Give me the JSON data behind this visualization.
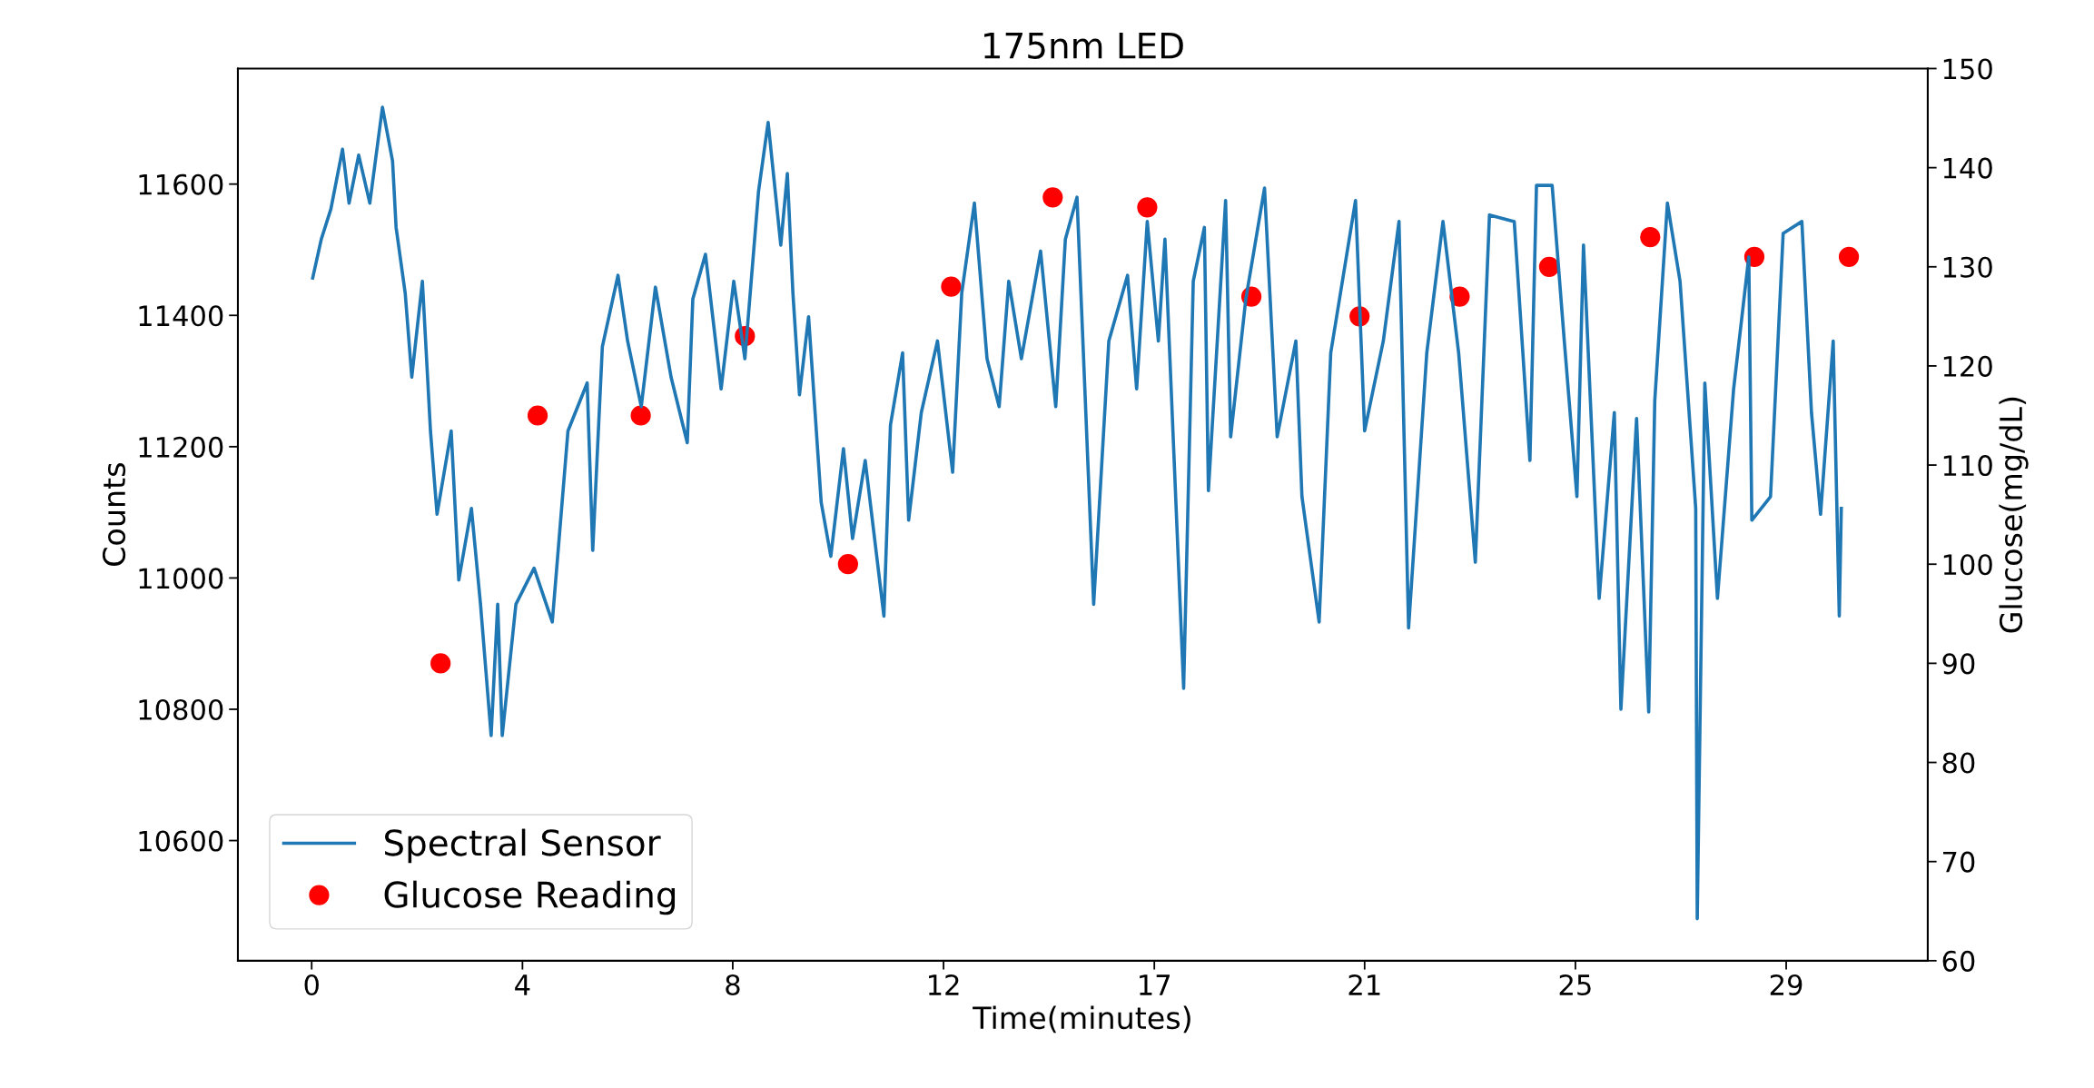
{
  "chart_data": {
    "type": "line",
    "title": "175nm LED",
    "xlabel": "Time(minutes)",
    "ylabel": "Counts",
    "y2label": "Glucose(mg/dL)",
    "xlim": [
      -1.46,
      31.97
    ],
    "xticks": [
      0,
      {
        "value": 4.17,
        "label": "4"
      },
      {
        "value": 8.33,
        "label": "8"
      },
      {
        "value": 12.5,
        "label": "12"
      },
      {
        "value": 16.67,
        "label": "17"
      },
      {
        "value": 20.83,
        "label": "21"
      },
      25,
      {
        "value": 29.17,
        "label": "29"
      }
    ],
    "ylim": [
      10417,
      11776
    ],
    "yticks": [
      10600,
      10800,
      11000,
      11200,
      11400,
      11600
    ],
    "y2lim": [
      60,
      150
    ],
    "y2ticks": [
      60,
      70,
      80,
      90,
      100,
      110,
      120,
      130,
      140,
      150
    ],
    "legend": "bottom left",
    "grid": false,
    "series": [
      {
        "name": "Spectral Sensor",
        "color": "#1f77b4",
        "line_style": "solid",
        "marker": "none",
        "x": [
          0.02,
          0.19,
          0.38,
          0.61,
          0.74,
          0.93,
          1.15,
          1.4,
          1.6,
          1.67,
          1.85,
          1.98,
          2.19,
          2.35,
          2.48,
          2.76,
          2.91,
          3.16,
          3.34,
          3.55,
          3.68,
          3.77,
          4.04,
          4.4,
          4.76,
          5.07,
          5.45,
          5.56,
          5.75,
          6.06,
          6.25,
          6.52,
          6.8,
          7.11,
          7.43,
          7.54,
          7.79,
          8.1,
          8.35,
          8.57,
          8.84,
          9.03,
          9.28,
          9.41,
          9.52,
          9.65,
          9.83,
          10.08,
          10.27,
          10.52,
          10.7,
          10.95,
          11.32,
          11.45,
          11.69,
          11.81,
          12.06,
          12.38,
          12.68,
          12.86,
          13.11,
          13.36,
          13.6,
          13.79,
          14.04,
          14.42,
          14.72,
          14.91,
          15.14,
          15.47,
          15.77,
          16.14,
          16.32,
          16.53,
          16.75,
          16.88,
          17.25,
          17.44,
          17.66,
          17.74,
          18.08,
          18.18,
          18.48,
          18.85,
          19.1,
          19.47,
          19.59,
          19.93,
          20.16,
          20.65,
          20.83,
          21.2,
          21.51,
          21.7,
          22.06,
          22.38,
          22.69,
          23.02,
          23.3,
          23.79,
          24.1,
          24.23,
          24.54,
          24.78,
          25.03,
          25.16,
          25.47,
          25.77,
          25.9,
          26.21,
          26.45,
          26.57,
          26.82,
          27.07,
          27.38,
          27.41,
          27.56,
          27.81,
          28.13,
          28.43,
          28.49,
          28.86,
          29.11,
          29.48,
          29.67,
          29.85,
          30.1,
          30.22,
          30.26
        ],
        "values": [
          11457,
          11516,
          11562,
          11653,
          11571,
          11644,
          11571,
          11717,
          11635,
          11534,
          11434,
          11306,
          11452,
          11224,
          11097,
          11224,
          10997,
          11106,
          10960,
          10760,
          10960,
          10760,
          10960,
          11015,
          10933,
          11224,
          11297,
          11042,
          11352,
          11461,
          11361,
          11261,
          11443,
          11306,
          11206,
          11425,
          11493,
          11288,
          11452,
          11334,
          11589,
          11694,
          11507,
          11616,
          11434,
          11279,
          11398,
          11115,
          11033,
          11197,
          11060,
          11179,
          10942,
          11233,
          11343,
          11088,
          11252,
          11361,
          11161,
          11434,
          11571,
          11334,
          11261,
          11452,
          11334,
          11498,
          11261,
          11516,
          11580,
          10960,
          11361,
          11461,
          11288,
          11543,
          11361,
          11516,
          10832,
          11452,
          11534,
          11133,
          11575,
          11215,
          11425,
          11594,
          11215,
          11361,
          11124,
          10933,
          11343,
          11575,
          11224,
          11361,
          11543,
          10924,
          11343,
          11543,
          11343,
          11024,
          11553,
          11543,
          11179,
          11598,
          11598,
          11361,
          11124,
          11507,
          10969,
          11252,
          10800,
          11243,
          10796,
          11270,
          11571,
          11452,
          11106,
          10481,
          11297,
          10969,
          11288,
          11489,
          11088,
          11124,
          11525,
          11543,
          11252,
          11097,
          11361,
          10942,
          11106
        ]
      },
      {
        "name": "Glucose Reading",
        "type": "scatter",
        "axis": "y2",
        "color": "#ff0000",
        "marker": "circle",
        "x": [
          2.55,
          4.47,
          6.51,
          8.57,
          10.61,
          12.65,
          14.66,
          16.53,
          18.59,
          20.73,
          22.71,
          24.48,
          26.48,
          28.54,
          30.41
        ],
        "values": [
          90,
          115,
          115,
          123,
          100,
          128,
          137,
          136,
          127,
          125,
          127,
          130,
          133,
          131,
          131
        ]
      }
    ]
  }
}
